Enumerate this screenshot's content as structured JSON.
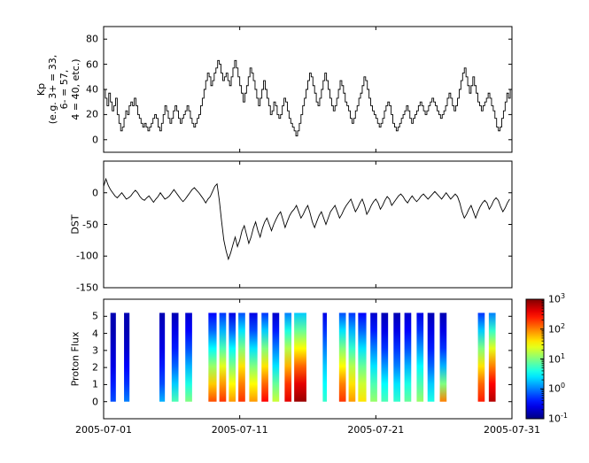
{
  "x_axis": {
    "range_days": [
      0,
      30
    ],
    "tick_days": [
      0,
      10,
      20,
      30
    ],
    "tick_labels": [
      "2005-07-01",
      "2005-07-11",
      "2005-07-21",
      "2005-07-31"
    ]
  },
  "chart_data": [
    {
      "type": "line",
      "name": "kp_index",
      "drawstyle": "steps-post",
      "ylabel_lines": [
        "Kp",
        "(e.g. 3+ = 33,",
        "6- = 57,",
        "4 = 40, etc.)"
      ],
      "ylim": [
        -10,
        90
      ],
      "yticks": [
        0,
        20,
        40,
        60,
        80
      ],
      "x_step_days": 0.125,
      "values": [
        40,
        33,
        27,
        37,
        30,
        23,
        27,
        33,
        20,
        13,
        7,
        10,
        17,
        23,
        20,
        27,
        30,
        27,
        33,
        27,
        20,
        17,
        13,
        10,
        13,
        10,
        7,
        10,
        13,
        17,
        20,
        17,
        10,
        7,
        13,
        20,
        27,
        23,
        17,
        13,
        17,
        23,
        27,
        23,
        17,
        13,
        17,
        20,
        23,
        27,
        23,
        17,
        13,
        10,
        13,
        17,
        20,
        27,
        33,
        40,
        47,
        53,
        50,
        43,
        47,
        53,
        57,
        63,
        60,
        53,
        47,
        50,
        53,
        47,
        43,
        50,
        57,
        63,
        57,
        50,
        43,
        37,
        30,
        37,
        43,
        50,
        57,
        53,
        47,
        40,
        33,
        27,
        33,
        40,
        47,
        40,
        33,
        27,
        20,
        23,
        30,
        27,
        20,
        17,
        20,
        27,
        33,
        30,
        23,
        17,
        13,
        10,
        7,
        3,
        7,
        13,
        20,
        27,
        33,
        40,
        47,
        53,
        50,
        43,
        37,
        30,
        27,
        33,
        40,
        47,
        53,
        47,
        40,
        33,
        27,
        23,
        27,
        33,
        40,
        47,
        43,
        37,
        30,
        27,
        23,
        17,
        13,
        17,
        23,
        27,
        33,
        37,
        43,
        50,
        47,
        40,
        33,
        27,
        23,
        20,
        17,
        13,
        10,
        13,
        17,
        23,
        27,
        30,
        27,
        20,
        13,
        10,
        7,
        10,
        13,
        17,
        20,
        23,
        27,
        23,
        17,
        13,
        17,
        20,
        23,
        27,
        30,
        27,
        23,
        20,
        23,
        27,
        30,
        33,
        30,
        27,
        23,
        20,
        17,
        20,
        23,
        27,
        33,
        37,
        33,
        27,
        23,
        27,
        33,
        40,
        47,
        53,
        57,
        50,
        43,
        37,
        43,
        50,
        43,
        37,
        30,
        27,
        23,
        27,
        30,
        33,
        37,
        33,
        27,
        23,
        17,
        10,
        7,
        10,
        17,
        23,
        30,
        37,
        33,
        40
      ]
    },
    {
      "type": "line",
      "name": "dst_index",
      "ylabel": "DST",
      "ylim": [
        -150,
        50
      ],
      "yticks": [
        0,
        -50,
        -100,
        -150
      ],
      "x_step_days": 0.1666667,
      "values": [
        10,
        22,
        12,
        5,
        0,
        -5,
        -8,
        -4,
        0,
        -5,
        -10,
        -8,
        -5,
        0,
        4,
        0,
        -6,
        -10,
        -12,
        -8,
        -5,
        -10,
        -15,
        -10,
        -6,
        0,
        -5,
        -10,
        -8,
        -5,
        0,
        5,
        0,
        -5,
        -10,
        -14,
        -10,
        -5,
        0,
        5,
        8,
        4,
        0,
        -5,
        -10,
        -16,
        -10,
        -6,
        2,
        10,
        14,
        -12,
        -45,
        -75,
        -92,
        -105,
        -95,
        -82,
        -70,
        -85,
        -75,
        -60,
        -52,
        -66,
        -80,
        -70,
        -56,
        -46,
        -60,
        -70,
        -56,
        -46,
        -40,
        -50,
        -60,
        -50,
        -42,
        -35,
        -30,
        -42,
        -55,
        -45,
        -36,
        -30,
        -26,
        -20,
        -30,
        -40,
        -34,
        -26,
        -20,
        -32,
        -46,
        -55,
        -45,
        -36,
        -30,
        -40,
        -50,
        -40,
        -30,
        -25,
        -20,
        -30,
        -40,
        -34,
        -26,
        -20,
        -15,
        -10,
        -20,
        -30,
        -24,
        -16,
        -10,
        -20,
        -34,
        -28,
        -20,
        -14,
        -10,
        -16,
        -26,
        -20,
        -12,
        -6,
        -10,
        -20,
        -15,
        -10,
        -5,
        -2,
        -6,
        -12,
        -16,
        -10,
        -5,
        -10,
        -14,
        -10,
        -5,
        -2,
        -6,
        -10,
        -6,
        -2,
        2,
        -2,
        -6,
        -10,
        -5,
        0,
        -5,
        -10,
        -6,
        -2,
        -6,
        -16,
        -30,
        -40,
        -34,
        -26,
        -20,
        -30,
        -40,
        -30,
        -22,
        -16,
        -12,
        -16,
        -26,
        -20,
        -12,
        -8,
        -12,
        -22,
        -30,
        -24,
        -16,
        -10
      ]
    },
    {
      "type": "heatmap",
      "name": "proton_flux",
      "ylabel": "Proton Flux",
      "ylim": [
        -1,
        6
      ],
      "yticks": [
        0,
        1,
        2,
        3,
        4,
        5
      ],
      "colormap": "jet",
      "color_scale": "log",
      "color_limits_exp": [
        -1,
        3
      ],
      "colorbar_tick_exponents": [
        3,
        2,
        1,
        0,
        -1
      ],
      "stripe_y_span": [
        0,
        5.2
      ],
      "columns": [
        {
          "day_start": 0.5,
          "day_end": 0.9,
          "log10_flux_y5_to_y0": [
            -0.8,
            -0.8,
            -0.7,
            -0.6,
            -0.4,
            -0.2
          ]
        },
        {
          "day_start": 1.5,
          "day_end": 1.9,
          "log10_flux_y5_to_y0": [
            -0.8,
            -0.8,
            -0.7,
            -0.5,
            -0.3,
            0.0
          ]
        },
        {
          "day_start": 4.1,
          "day_end": 4.5,
          "log10_flux_y5_to_y0": [
            -0.8,
            -0.7,
            -0.6,
            -0.4,
            -0.2,
            0.2
          ]
        },
        {
          "day_start": 5.0,
          "day_end": 5.5,
          "log10_flux_y5_to_y0": [
            -0.8,
            -0.6,
            -0.4,
            -0.1,
            0.3,
            0.8
          ]
        },
        {
          "day_start": 6.0,
          "day_end": 6.5,
          "log10_flux_y5_to_y0": [
            -0.7,
            -0.5,
            -0.2,
            0.2,
            0.6,
            1.0
          ]
        },
        {
          "day_start": 7.7,
          "day_end": 8.3,
          "log10_flux_y5_to_y0": [
            -0.5,
            -0.1,
            0.5,
            1.1,
            1.7,
            2.2
          ]
        },
        {
          "day_start": 8.5,
          "day_end": 9.0,
          "log10_flux_y5_to_y0": [
            -0.3,
            0.2,
            0.8,
            1.4,
            1.9,
            2.3
          ]
        },
        {
          "day_start": 9.2,
          "day_end": 9.7,
          "log10_flux_y5_to_y0": [
            -0.6,
            -0.1,
            0.5,
            1.0,
            1.5,
            1.9
          ]
        },
        {
          "day_start": 9.9,
          "day_end": 10.4,
          "log10_flux_y5_to_y0": [
            -0.2,
            0.4,
            1.0,
            1.6,
            2.0,
            2.3
          ]
        },
        {
          "day_start": 10.7,
          "day_end": 11.3,
          "log10_flux_y5_to_y0": [
            -0.6,
            -0.2,
            0.4,
            1.0,
            1.5,
            1.9
          ]
        },
        {
          "day_start": 11.6,
          "day_end": 12.1,
          "log10_flux_y5_to_y0": [
            -0.3,
            0.3,
            1.0,
            1.6,
            2.1,
            2.5
          ]
        },
        {
          "day_start": 12.4,
          "day_end": 12.9,
          "log10_flux_y5_to_y0": [
            -0.7,
            -0.4,
            0.0,
            0.4,
            0.9,
            1.3
          ]
        },
        {
          "day_start": 13.3,
          "day_end": 13.8,
          "log10_flux_y5_to_y0": [
            0.0,
            0.6,
            1.2,
            1.8,
            2.3,
            2.6
          ]
        },
        {
          "day_start": 14.0,
          "day_end": 14.9,
          "log10_flux_y5_to_y0": [
            0.3,
            0.9,
            1.5,
            2.1,
            2.6,
            2.9
          ]
        },
        {
          "day_start": 16.1,
          "day_end": 16.4,
          "log10_flux_y5_to_y0": [
            -0.6,
            -0.3,
            0.0,
            0.3,
            0.5,
            0.7
          ]
        },
        {
          "day_start": 17.3,
          "day_end": 17.8,
          "log10_flux_y5_to_y0": [
            -0.2,
            0.4,
            1.0,
            1.5,
            2.0,
            2.3
          ]
        },
        {
          "day_start": 18.0,
          "day_end": 18.5,
          "log10_flux_y5_to_y0": [
            -0.3,
            0.2,
            0.7,
            1.2,
            1.6,
            1.9
          ]
        },
        {
          "day_start": 18.7,
          "day_end": 19.3,
          "log10_flux_y5_to_y0": [
            -0.5,
            -0.1,
            0.4,
            0.9,
            1.3,
            1.6
          ]
        },
        {
          "day_start": 19.6,
          "day_end": 20.1,
          "log10_flux_y5_to_y0": [
            -0.7,
            -0.4,
            0.0,
            0.4,
            0.8,
            1.1
          ]
        },
        {
          "day_start": 20.4,
          "day_end": 20.9,
          "log10_flux_y5_to_y0": [
            -0.8,
            -0.6,
            -0.3,
            0.1,
            0.5,
            0.8
          ]
        },
        {
          "day_start": 21.3,
          "day_end": 21.8,
          "log10_flux_y5_to_y0": [
            -0.8,
            -0.6,
            -0.3,
            0.0,
            0.4,
            0.7
          ]
        },
        {
          "day_start": 22.1,
          "day_end": 22.6,
          "log10_flux_y5_to_y0": [
            -0.7,
            -0.5,
            -0.2,
            0.2,
            0.6,
            0.9
          ]
        },
        {
          "day_start": 23.0,
          "day_end": 23.5,
          "log10_flux_y5_to_y0": [
            -0.6,
            -0.3,
            0.1,
            0.5,
            0.8,
            1.1
          ]
        },
        {
          "day_start": 23.8,
          "day_end": 24.3,
          "log10_flux_y5_to_y0": [
            -0.8,
            -0.6,
            -0.4,
            -0.1,
            0.3,
            0.6
          ]
        },
        {
          "day_start": 24.7,
          "day_end": 25.2,
          "log10_flux_y5_to_y0": [
            -0.8,
            -0.6,
            -0.3,
            0.2,
            1.0,
            2.0
          ]
        },
        {
          "day_start": 27.5,
          "day_end": 28.0,
          "log10_flux_y5_to_y0": [
            -0.3,
            0.3,
            1.0,
            1.6,
            2.1,
            2.4
          ]
        },
        {
          "day_start": 28.3,
          "day_end": 28.8,
          "log10_flux_y5_to_y0": [
            0.0,
            0.7,
            1.4,
            2.0,
            2.5,
            2.8
          ]
        }
      ]
    }
  ]
}
